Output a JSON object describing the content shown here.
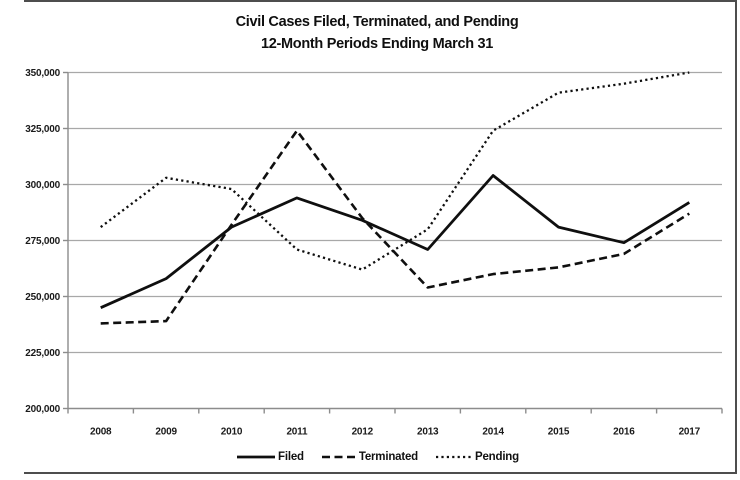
{
  "chart_data": {
    "type": "line",
    "title_line1": "Civil Cases Filed, Terminated, and Pending",
    "title_line2": "12-Month Periods Ending March 31",
    "categories": [
      "2008",
      "2009",
      "2010",
      "2011",
      "2012",
      "2013",
      "2014",
      "2015",
      "2016",
      "2017"
    ],
    "series": [
      {
        "name": "Filed",
        "style": "solid",
        "values": [
          245000,
          258000,
          281000,
          294000,
          284000,
          271000,
          304000,
          281000,
          274000,
          292000
        ]
      },
      {
        "name": "Terminated",
        "style": "dashed",
        "values": [
          238000,
          239000,
          282000,
          324000,
          285000,
          254000,
          260000,
          263000,
          269000,
          287000
        ]
      },
      {
        "name": "Pending",
        "style": "dotted",
        "values": [
          281000,
          303000,
          298000,
          271000,
          262000,
          280000,
          324000,
          341000,
          345000,
          350000
        ]
      }
    ],
    "ylim": [
      200000,
      350000
    ],
    "y_ticks": [
      {
        "value": 350000,
        "label": "350,000"
      },
      {
        "value": 325000,
        "label": "325,000"
      },
      {
        "value": 300000,
        "label": "300,000"
      },
      {
        "value": 275000,
        "label": "275,000"
      },
      {
        "value": 250000,
        "label": "250,000"
      },
      {
        "value": 225000,
        "label": "225,000"
      },
      {
        "value": 200000,
        "label": "200,000"
      }
    ],
    "grid": "horizontal",
    "legend_position": "bottom",
    "line_color": "#0f0f0f",
    "grid_color": "#a8a8a8"
  }
}
